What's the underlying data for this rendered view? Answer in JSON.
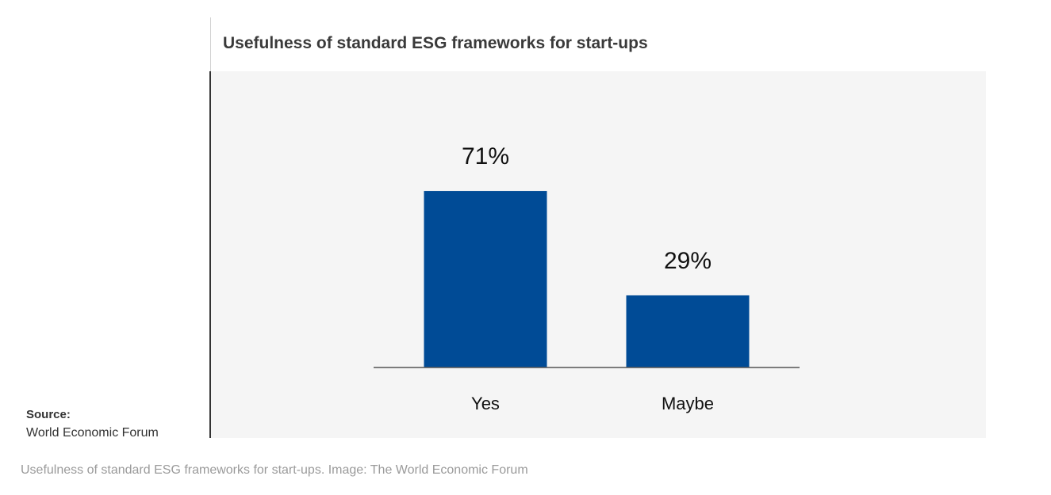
{
  "chart_data": {
    "type": "bar",
    "title": "Usefulness of standard ESG frameworks for start-ups",
    "categories": [
      "Yes",
      "Maybe"
    ],
    "values": [
      71,
      29
    ],
    "data_labels": [
      "71%",
      "29%"
    ],
    "ylim": [
      0,
      100
    ],
    "xlabel": "",
    "ylabel": "",
    "grid": false,
    "legend": "none",
    "bar_color": "#004B96",
    "background_color": "#F5F5F5"
  },
  "source": {
    "label": "Source:",
    "value": "World Economic Forum"
  },
  "caption": "Usefulness of standard ESG frameworks for start-ups. Image: The World Economic Forum"
}
